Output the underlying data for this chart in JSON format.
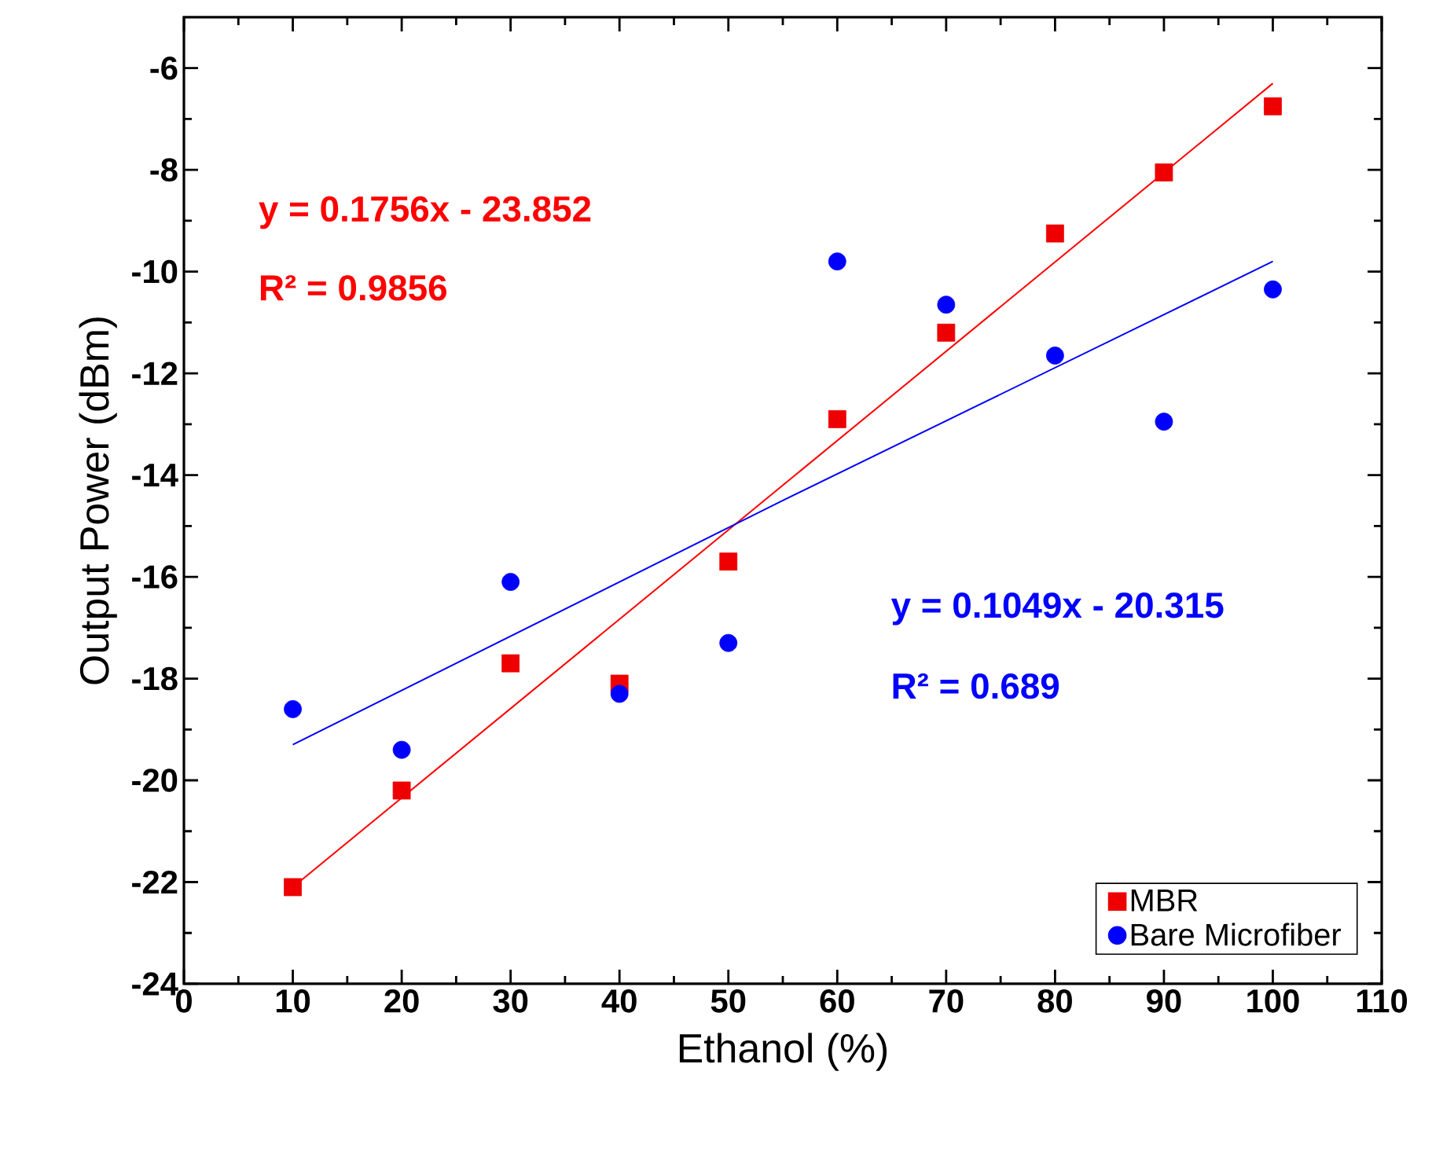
{
  "chart_data": {
    "type": "scatter",
    "xlabel": "Ethanol (%)",
    "ylabel": "Output Power (dBm)",
    "x": [
      10,
      20,
      30,
      40,
      50,
      60,
      70,
      80,
      90,
      100
    ],
    "series": [
      {
        "name": "MBR",
        "marker": "square",
        "color": "#ee0000",
        "values": [
          -22.1,
          -20.2,
          -17.7,
          -18.1,
          -15.7,
          -12.9,
          -11.2,
          -9.25,
          -8.05,
          -6.75
        ]
      },
      {
        "name": "Bare Microfiber",
        "marker": "circle",
        "color": "#0000ff",
        "values": [
          -18.6,
          -19.4,
          -16.1,
          -18.3,
          -17.3,
          -9.8,
          -10.65,
          -11.65,
          -12.95,
          -10.35
        ]
      },
      {
        "type": "line",
        "marker": "none",
        "color": "#ff0000",
        "x": [
          10,
          55,
          100
        ],
        "values": [
          -22.1,
          -14.2,
          -6.3
        ]
      },
      {
        "type": "line",
        "marker": "none",
        "color": "#0000ff",
        "x": [
          10,
          55,
          100
        ],
        "values": [
          -19.3,
          -14.5,
          -9.8
        ]
      }
    ],
    "annotations": [
      "y = 0.1756x - 23.852",
      "R² = 0.9856",
      "y = 0.1049x - 20.315",
      "R² = 0.689"
    ],
    "xlim": [
      0,
      110
    ],
    "ylim": [
      -24,
      -5
    ],
    "xticks": [
      0,
      10,
      20,
      30,
      40,
      50,
      60,
      70,
      80,
      90,
      100,
      110
    ],
    "yticks": [
      -24,
      -22,
      -20,
      -18,
      -16,
      -14,
      -12,
      -10,
      -8,
      -6
    ],
    "grid": false,
    "legend": "bottom right"
  }
}
